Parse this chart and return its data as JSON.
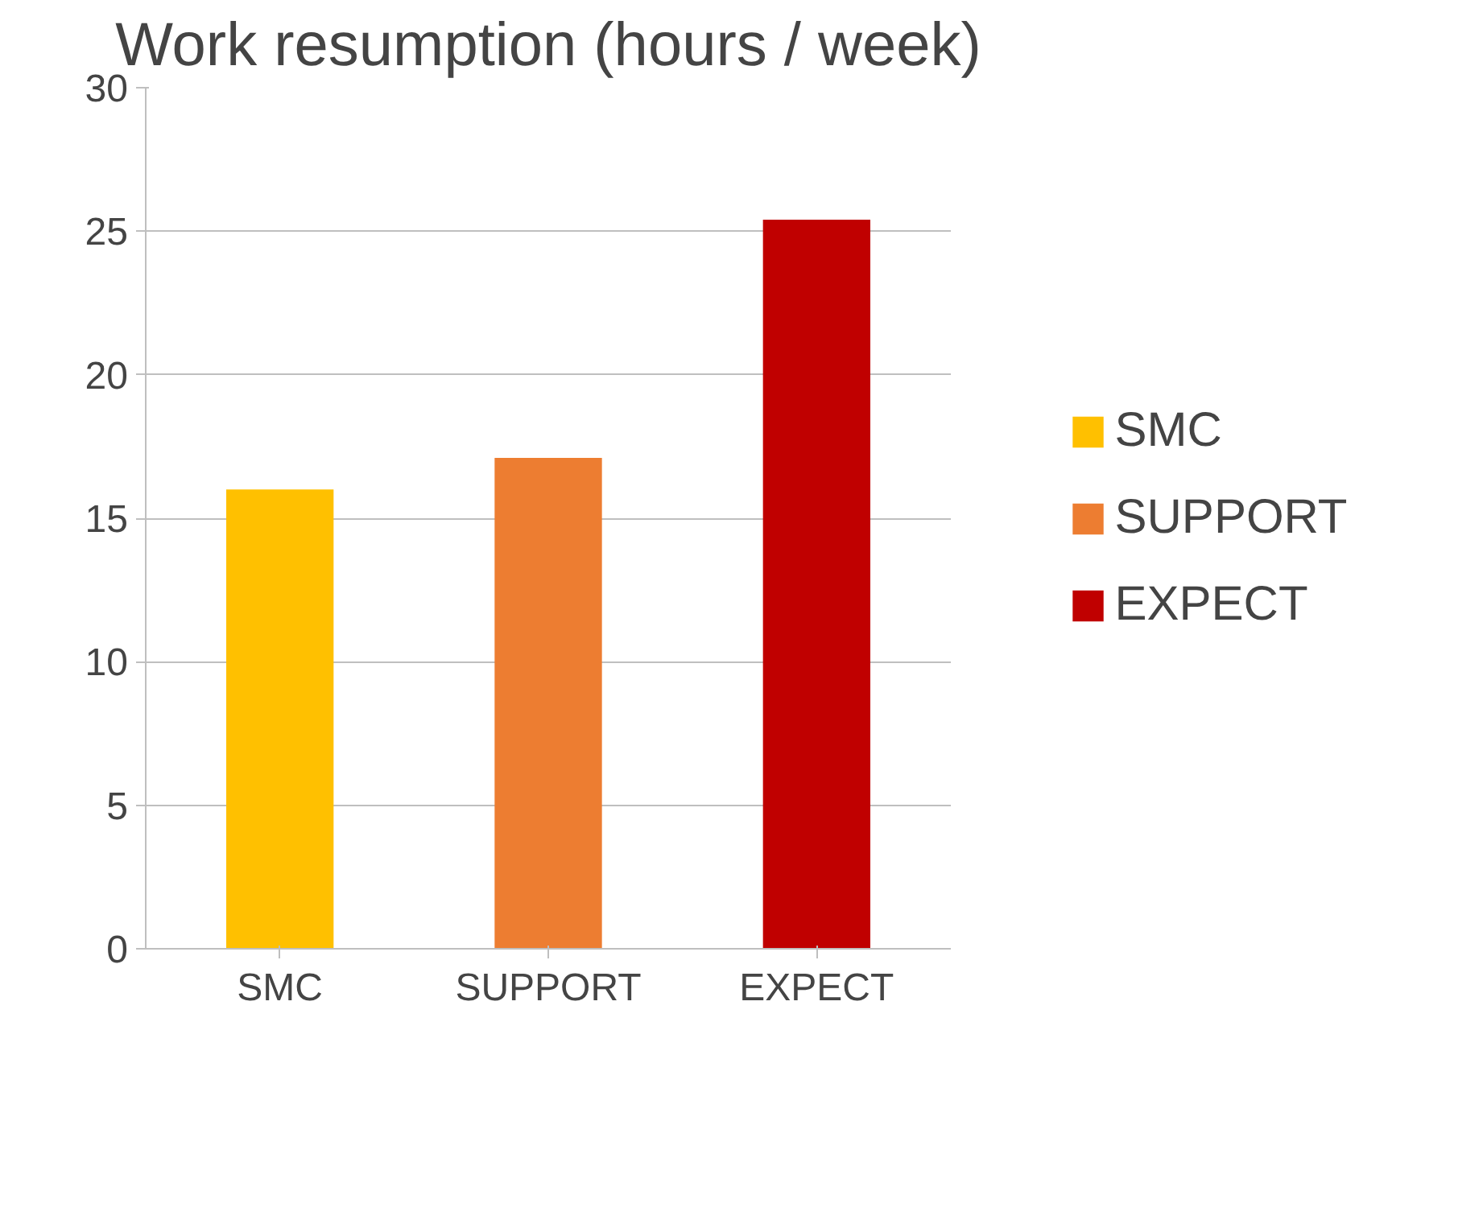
{
  "chart_data": {
    "type": "bar",
    "title": "Work resumption (hours / week)",
    "categories": [
      "SMC",
      "SUPPORT",
      "EXPECT"
    ],
    "series": [
      {
        "name": "SMC",
        "color": "#ffc000",
        "values": [
          16,
          null,
          null
        ]
      },
      {
        "name": "SUPPORT",
        "color": "#ed7d31",
        "values": [
          null,
          17.1,
          null
        ]
      },
      {
        "name": "EXPECT",
        "color": "#c00000",
        "values": [
          null,
          null,
          25.4
        ]
      }
    ],
    "ylim": [
      0,
      30
    ],
    "yticks": [
      0,
      5,
      10,
      15,
      20,
      25,
      30
    ],
    "grid": "y",
    "legend": "right"
  }
}
